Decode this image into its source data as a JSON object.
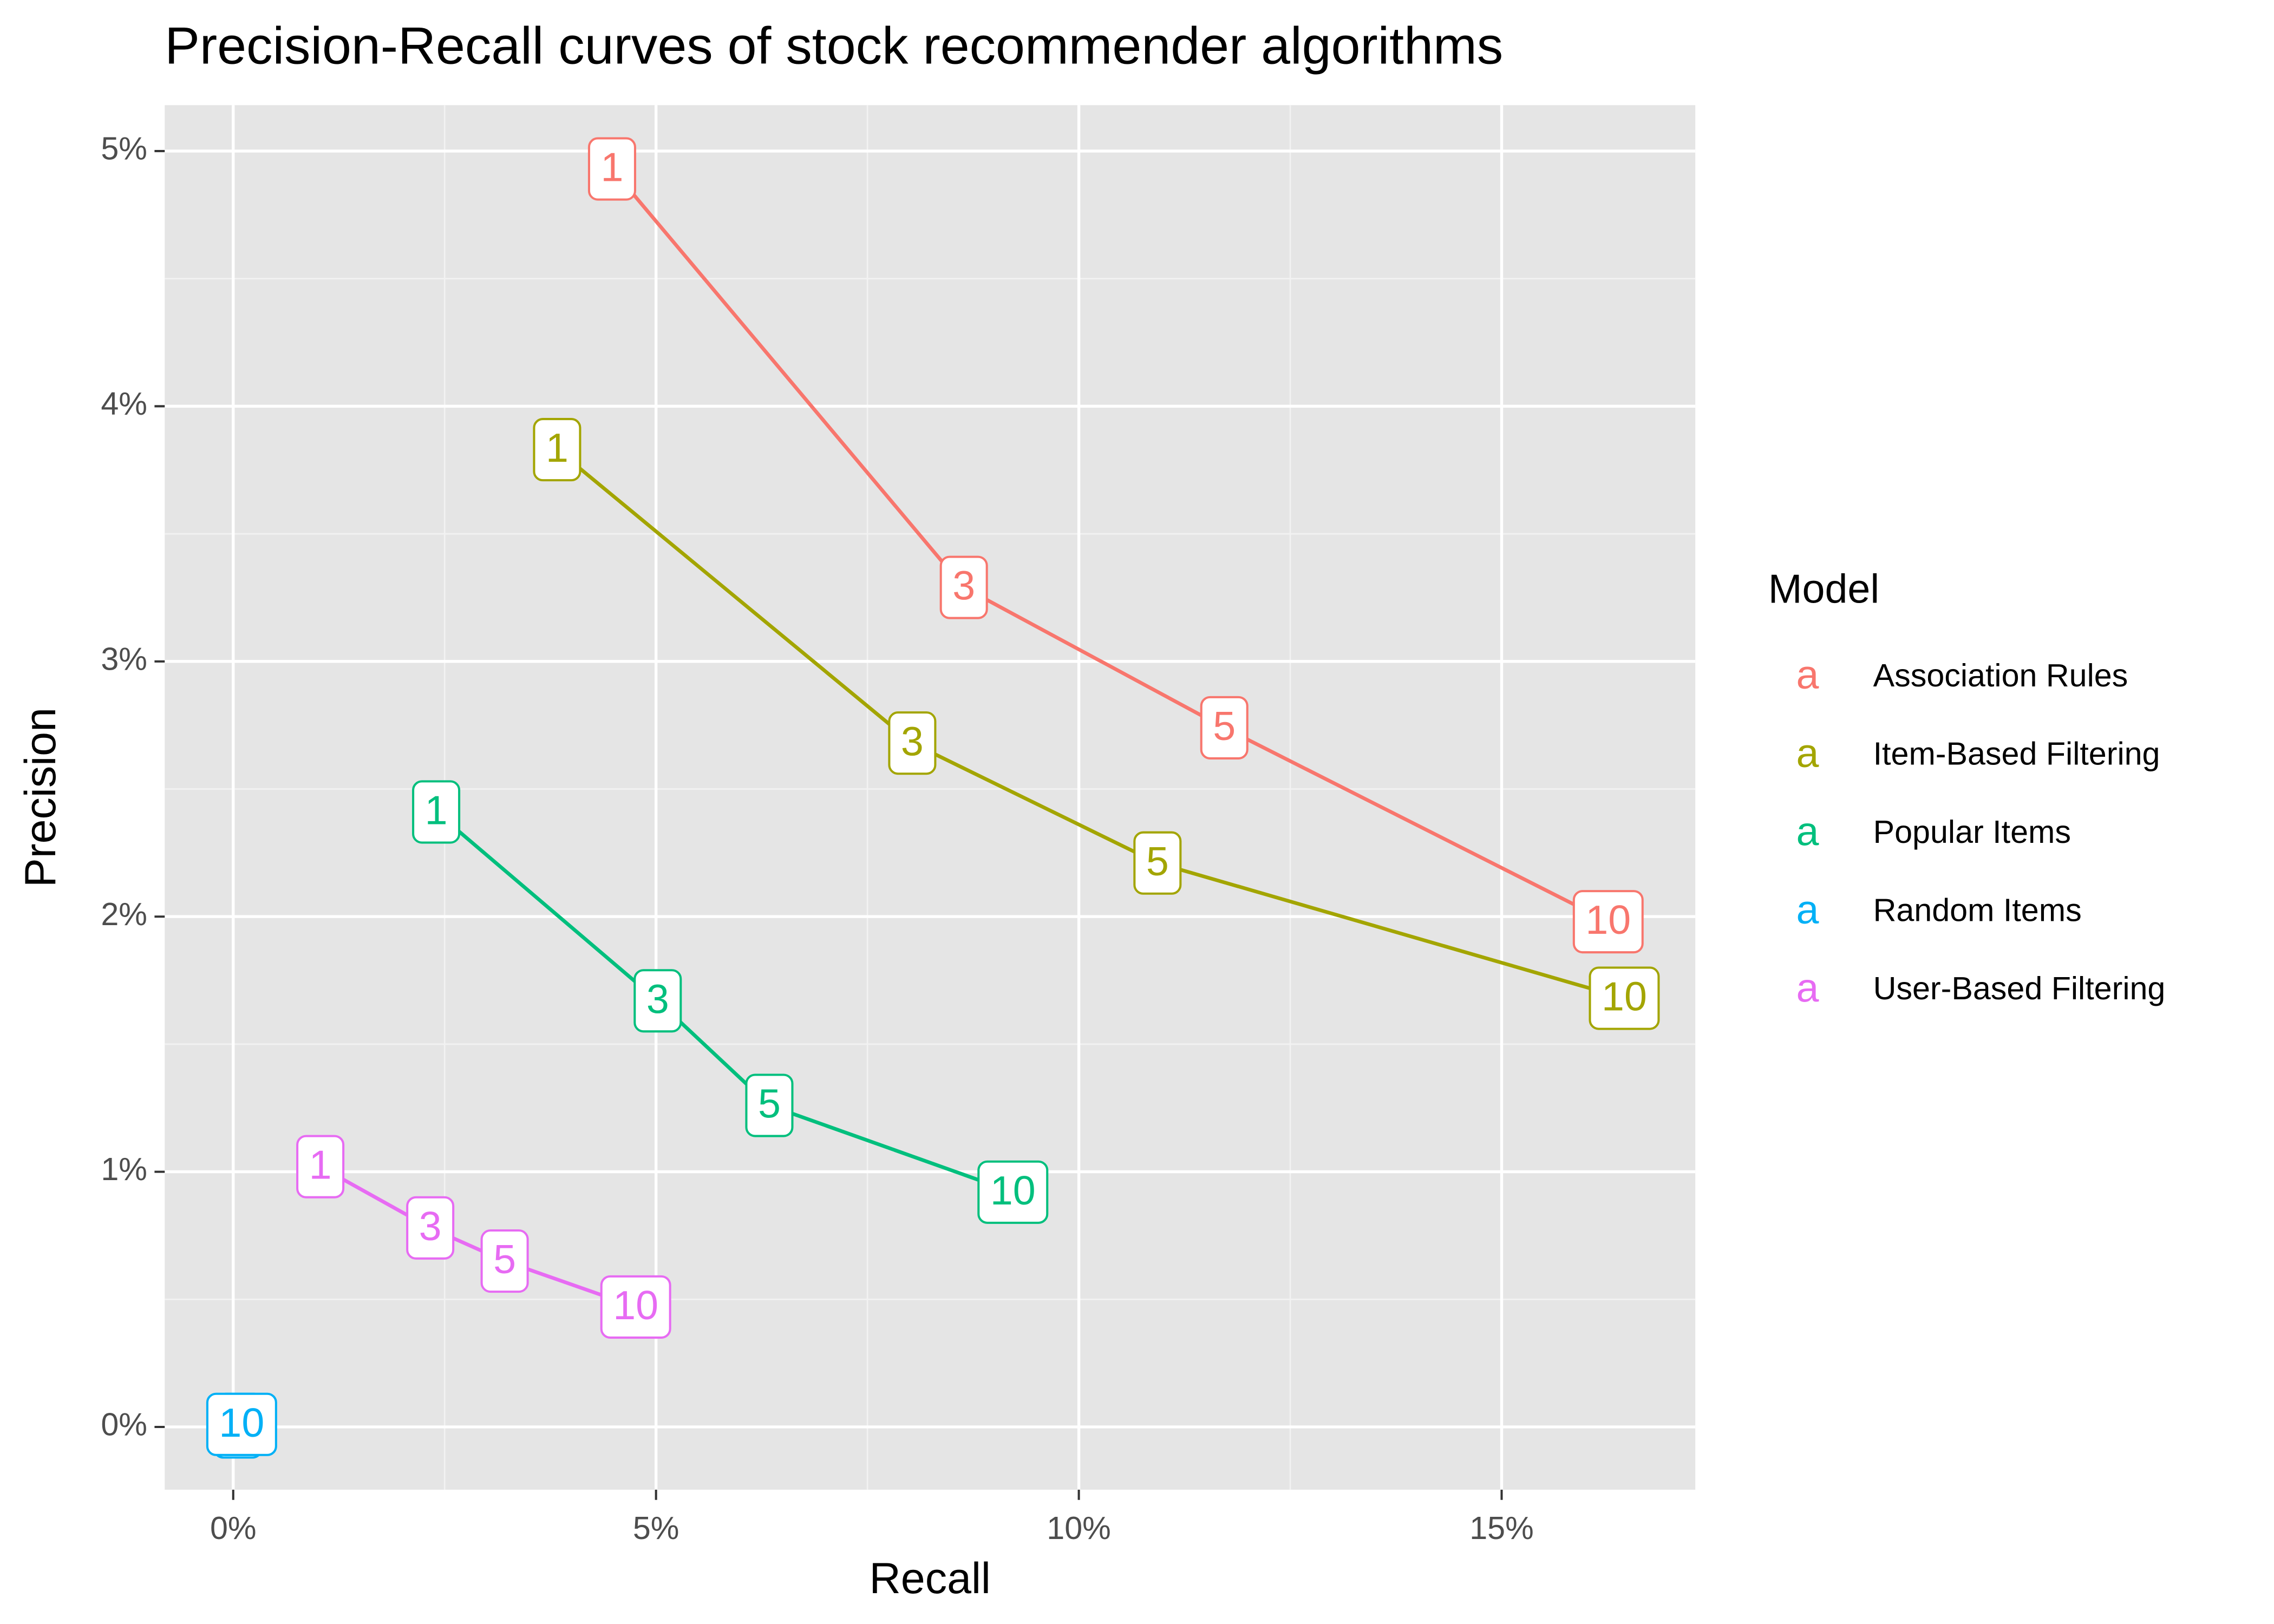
{
  "chart_data": {
    "type": "line",
    "title": "Precision-Recall curves of stock recommender algorithms",
    "x_label": "Recall",
    "y_label": "Precision",
    "legend_title": "Model",
    "legend_glyph": "a",
    "legend_position": "right",
    "grid": true,
    "xlim": [
      -0.81,
      17.29
    ],
    "ylim": [
      -0.246,
      5.18
    ],
    "xticks": [
      {
        "value": 0,
        "label": "0%"
      },
      {
        "value": 5,
        "label": "5%"
      },
      {
        "value": 10,
        "label": "10%"
      },
      {
        "value": 15,
        "label": "15%"
      }
    ],
    "yticks": [
      {
        "value": 0,
        "label": "0%"
      },
      {
        "value": 1,
        "label": "1%"
      },
      {
        "value": 2,
        "label": "2%"
      },
      {
        "value": 3,
        "label": "3%"
      },
      {
        "value": 4,
        "label": "4%"
      },
      {
        "value": 5,
        "label": "5%"
      }
    ],
    "series": [
      {
        "name": "Association Rules",
        "color": "#F8766D",
        "labels": [
          "1",
          "3",
          "5",
          "10"
        ],
        "x": [
          4.48,
          8.64,
          11.72,
          16.26
        ],
        "values": [
          4.93,
          3.29,
          2.74,
          1.98
        ]
      },
      {
        "name": "Item-Based Filtering",
        "color": "#A3A500",
        "labels": [
          "1",
          "3",
          "5",
          "10"
        ],
        "x": [
          3.83,
          8.03,
          10.93,
          16.45
        ],
        "values": [
          3.83,
          2.68,
          2.21,
          1.68
        ]
      },
      {
        "name": "Popular Items",
        "color": "#00BF7D",
        "labels": [
          "1",
          "3",
          "5",
          "10"
        ],
        "x": [
          2.4,
          5.02,
          6.34,
          9.22
        ],
        "values": [
          2.41,
          1.67,
          1.26,
          0.92
        ]
      },
      {
        "name": "Random Items",
        "color": "#00B0F6",
        "labels": [
          "1",
          "3",
          "5",
          "10"
        ],
        "x": [
          0.05,
          0.06,
          0.08,
          0.1
        ],
        "values": [
          0.0,
          0.0,
          0.01,
          0.01
        ]
      },
      {
        "name": "User-Based Filtering",
        "color": "#E76BF3",
        "labels": [
          "1",
          "3",
          "5",
          "10"
        ],
        "x": [
          1.03,
          2.33,
          3.21,
          4.76
        ],
        "values": [
          1.02,
          0.78,
          0.65,
          0.47
        ]
      }
    ]
  }
}
